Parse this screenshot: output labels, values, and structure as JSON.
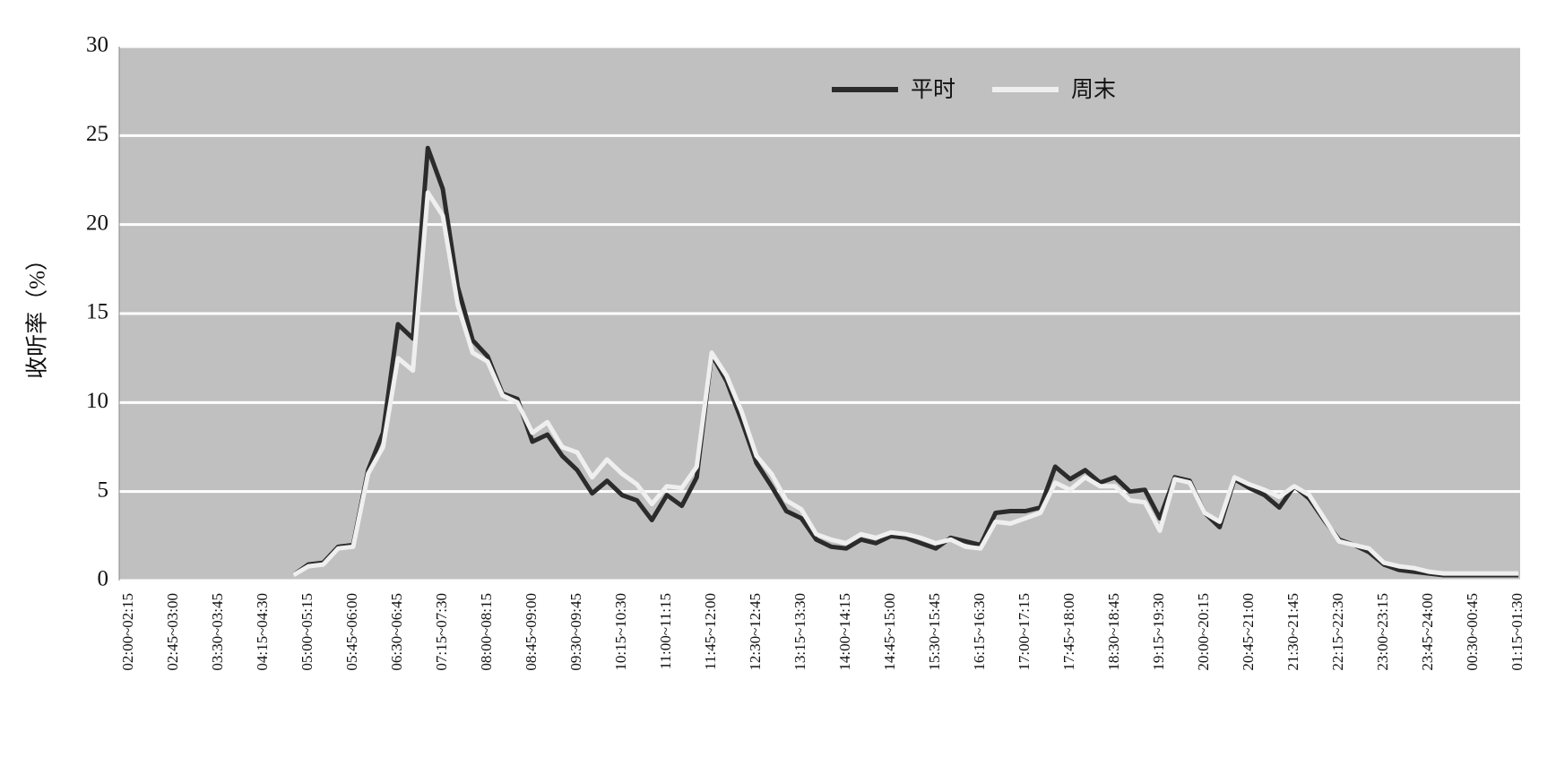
{
  "chart_data": {
    "type": "line",
    "y_label": "收听率（%）",
    "categories": [
      "02:00~02:15",
      null,
      null,
      "02:45~03:00",
      null,
      null,
      "03:30~03:45",
      null,
      null,
      "04:15~04:30",
      null,
      null,
      "05:00~05:15",
      null,
      null,
      "05:45~06:00",
      null,
      null,
      "06:30~06:45",
      null,
      null,
      "07:15~07:30",
      null,
      null,
      "08:00~08:15",
      null,
      null,
      "08:45~09:00",
      null,
      null,
      "09:30~09:45",
      null,
      null,
      "10:15~10:30",
      null,
      null,
      "11:00~11:15",
      null,
      null,
      "11:45~12:00",
      null,
      null,
      "12:30~12:45",
      null,
      null,
      "13:15~13:30",
      null,
      null,
      "14:00~14:15",
      null,
      null,
      "14:45~15:00",
      null,
      null,
      "15:30~15:45",
      null,
      null,
      "16:15~16:30",
      null,
      null,
      "17:00~17:15",
      null,
      null,
      "17:45~18:00",
      null,
      null,
      "18:30~18:45",
      null,
      null,
      "19:15~19:30",
      null,
      null,
      "20:00~20:15",
      null,
      null,
      "20:45~21:00",
      null,
      null,
      "21:30~21:45",
      null,
      null,
      "22:15~22:30",
      null,
      null,
      "23:00~23:15",
      null,
      null,
      "23:45~24:00",
      null,
      null,
      "00:30~00:45",
      null,
      null,
      "01:15~01:30"
    ],
    "series": [
      {
        "name": "平时",
        "color": "#2b2b2b",
        "values": [
          null,
          null,
          null,
          null,
          null,
          null,
          null,
          null,
          null,
          null,
          null,
          0.3,
          0.9,
          1.0,
          1.9,
          2.0,
          6.2,
          8.3,
          14.4,
          13.6,
          24.3,
          22.0,
          16.5,
          13.5,
          12.6,
          10.5,
          10.2,
          7.8,
          8.2,
          7.0,
          6.2,
          4.9,
          5.6,
          4.8,
          4.5,
          3.4,
          4.8,
          4.2,
          5.8,
          12.7,
          11.2,
          9.0,
          6.6,
          5.3,
          3.9,
          3.5,
          2.3,
          1.9,
          1.8,
          2.3,
          2.1,
          2.5,
          2.4,
          2.1,
          1.8,
          2.4,
          2.2,
          2.0,
          3.8,
          3.9,
          3.9,
          4.1,
          6.4,
          5.7,
          6.2,
          5.5,
          5.8,
          5.0,
          5.1,
          3.5,
          5.8,
          5.6,
          3.8,
          3.0,
          5.7,
          5.2,
          4.8,
          4.1,
          5.3,
          4.6,
          3.4,
          2.3,
          2.0,
          1.6,
          0.9,
          0.6,
          0.5,
          0.4,
          0.3,
          0.3,
          0.3,
          0.3,
          0.3,
          0.3
        ]
      },
      {
        "name": "周末",
        "color": "#efefef",
        "values": [
          null,
          null,
          null,
          null,
          null,
          null,
          null,
          null,
          null,
          null,
          null,
          0.3,
          0.8,
          0.9,
          1.8,
          1.9,
          6.0,
          7.5,
          12.5,
          11.8,
          21.8,
          20.5,
          15.5,
          12.8,
          12.3,
          10.4,
          10.0,
          8.3,
          8.9,
          7.5,
          7.2,
          5.8,
          6.8,
          6.0,
          5.4,
          4.3,
          5.3,
          5.2,
          6.4,
          12.8,
          11.5,
          9.5,
          7.0,
          6.0,
          4.5,
          4.0,
          2.6,
          2.3,
          2.1,
          2.6,
          2.4,
          2.7,
          2.6,
          2.4,
          2.1,
          2.3,
          1.9,
          1.8,
          3.3,
          3.2,
          3.5,
          3.8,
          5.5,
          5.1,
          5.8,
          5.3,
          5.3,
          4.5,
          4.4,
          2.8,
          5.7,
          5.5,
          3.8,
          3.3,
          5.8,
          5.4,
          5.1,
          4.7,
          5.3,
          4.8,
          3.5,
          2.2,
          2.0,
          1.8,
          1.0,
          0.8,
          0.7,
          0.5,
          0.4,
          0.4,
          0.4,
          0.4,
          0.4,
          0.4
        ]
      }
    ],
    "ylim": [
      0,
      30
    ],
    "yticks": [
      0,
      5,
      10,
      15,
      20,
      25,
      30
    ],
    "grid": true,
    "legend": "top"
  }
}
